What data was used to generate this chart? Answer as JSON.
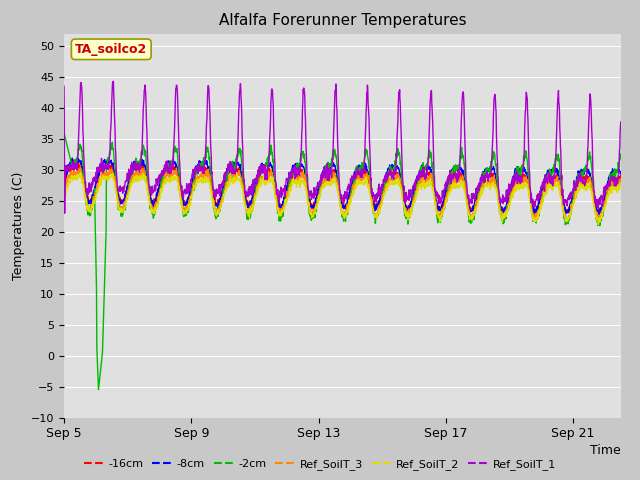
{
  "title": "Alfalfa Forerunner Temperatures",
  "xlabel": "Time",
  "ylabel": "Temperatures (C)",
  "ylim": [
    -10,
    52
  ],
  "yticks": [
    -10,
    -5,
    0,
    5,
    10,
    15,
    20,
    25,
    30,
    35,
    40,
    45,
    50
  ],
  "xtick_labels": [
    "Sep 5",
    "Sep 9",
    "Sep 13",
    "Sep 17",
    "Sep 21"
  ],
  "xtick_positions": [
    0,
    4,
    8,
    12,
    16
  ],
  "annotation_text": "TA_soilco2",
  "annotation_color": "#cc0000",
  "annotation_bg": "#ffffcc",
  "annotation_edge": "#999900",
  "bg_color": "#c8c8c8",
  "plot_bg": "#e0e0e0",
  "colors": {
    "-16cm": "#ff0000",
    "-8cm": "#0000ff",
    "-2cm": "#00bb00",
    "Ref_SoilT_3": "#ff8800",
    "Ref_SoilT_2": "#dddd00",
    "Ref_SoilT_1": "#aa00cc"
  },
  "legend_labels": [
    "-16cm",
    "-8cm",
    "-2cm",
    "Ref_SoilT_3",
    "Ref_SoilT_2",
    "Ref_SoilT_1"
  ],
  "n_days": 17.5,
  "spike_day": 1.15,
  "spike_low": -5.5
}
